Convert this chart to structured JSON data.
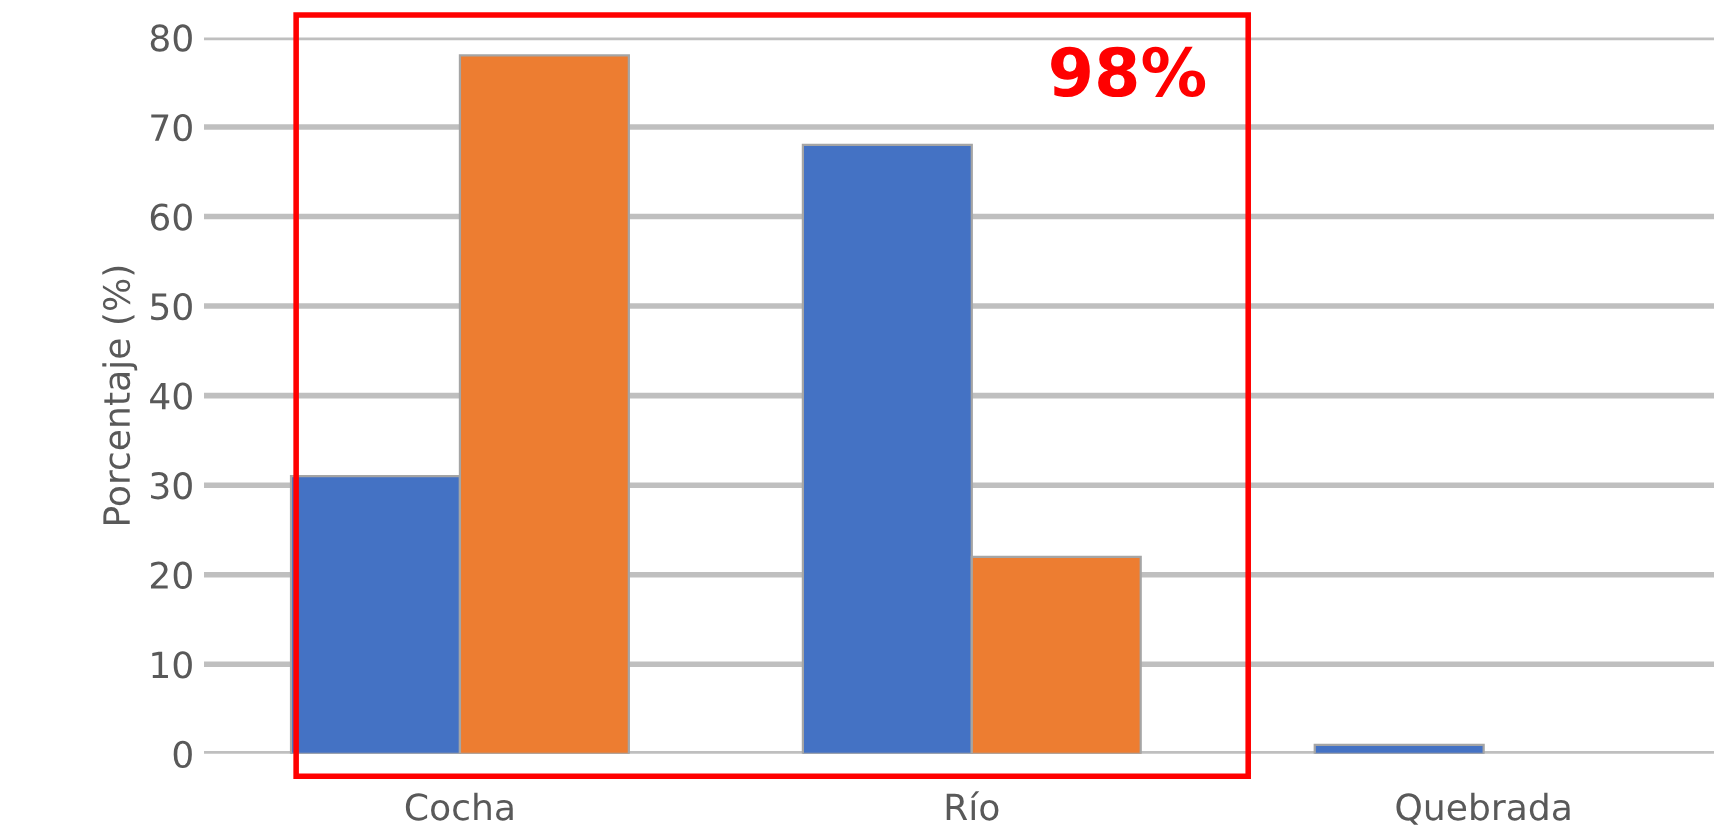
{
  "chart_data": {
    "type": "bar",
    "ylabel": "Porcentaje (%)",
    "categories": [
      "Cocha",
      "Río",
      "Quebrada"
    ],
    "series": [
      {
        "color": "#4472c4",
        "values": [
          31,
          68,
          1
        ]
      },
      {
        "color": "#ed7d31",
        "values": [
          78,
          22,
          0
        ]
      }
    ],
    "ylim": [
      0,
      80
    ],
    "yticks": [
      0,
      10,
      20,
      30,
      40,
      50,
      60,
      70,
      80
    ],
    "grid": "y",
    "legend": false,
    "annotations": [
      "98%"
    ]
  }
}
